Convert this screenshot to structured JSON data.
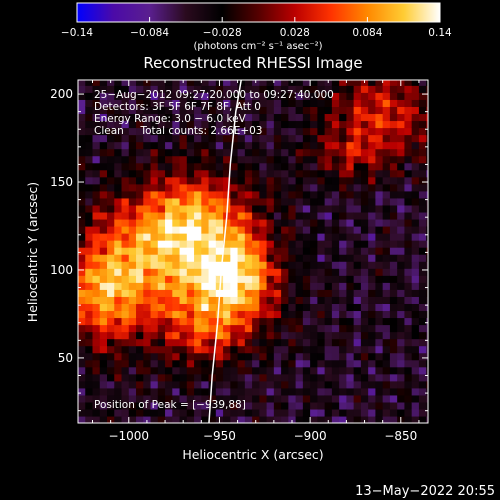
{
  "chart_data": {
    "type": "heatmap",
    "title": "Reconstructed RHESSI Image",
    "xlabel": "Heliocentric X (arcsec)",
    "ylabel": "Heliocentric Y (arcsec)",
    "xlim": [
      -1028,
      -835
    ],
    "ylim": [
      13,
      208
    ],
    "x_ticks": [
      -1000,
      -950,
      -900,
      -850
    ],
    "x_tick_labels": [
      "−1000",
      "−950",
      "−900",
      "−850"
    ],
    "y_ticks": [
      50,
      100,
      150,
      200
    ],
    "y_tick_labels": [
      "50",
      "100",
      "150",
      "200"
    ],
    "colorbar": {
      "range": [
        -0.14,
        0.14
      ],
      "ticks": [
        -0.14,
        -0.084,
        -0.028,
        0.028,
        0.084,
        0.14
      ],
      "tick_labels": [
        "−0.14",
        "−0.084",
        "−0.028",
        "0.028",
        "0.084",
        "0.14"
      ],
      "unit_label": "(photons cm⁻² s⁻¹ asec⁻²)",
      "colormap": [
        "#0000ff",
        "#4b0aa8",
        "#5a1f8f",
        "#2a0a1e",
        "#000000",
        "#550000",
        "#bb0000",
        "#ff3300",
        "#ff8800",
        "#ffcc33",
        "#ffffff"
      ]
    },
    "annotations": [
      "25−Aug−2012 09:27:20.000 to 09:27:40.000",
      "Detectors: 3F 5F 6F 7F 8F, Att 0",
      "Energy Range: 3.0 − 6.0 keV",
      "Clean     Total counts: 2.66E+03"
    ],
    "peak_label": "Position of Peak = [−939,88]",
    "peak": [
      -939,
      88
    ],
    "limb_curve": {
      "x": [
        -956,
        -954,
        -951,
        -949,
        -946,
        -944,
        -941,
        -938
      ],
      "y": [
        10,
        40,
        70,
        100,
        130,
        160,
        190,
        208
      ]
    },
    "sources": [
      {
        "x": -985,
        "y": 105,
        "sx": 30,
        "sy": 28,
        "amp": 0.13
      },
      {
        "x": -940,
        "y": 95,
        "sx": 16,
        "sy": 16,
        "amp": 0.14
      },
      {
        "x": -960,
        "y": 130,
        "sx": 22,
        "sy": 18,
        "amp": 0.1
      },
      {
        "x": -1015,
        "y": 85,
        "sx": 14,
        "sy": 20,
        "amp": 0.09
      },
      {
        "x": -955,
        "y": 65,
        "sx": 18,
        "sy": 14,
        "amp": 0.07
      },
      {
        "x": -860,
        "y": 190,
        "sx": 22,
        "sy": 16,
        "amp": 0.09
      },
      {
        "x": -878,
        "y": 165,
        "sx": 18,
        "sy": 10,
        "amp": 0.06
      }
    ],
    "background_level": -0.05
  },
  "timestamp": "13−May−2022 20:55"
}
